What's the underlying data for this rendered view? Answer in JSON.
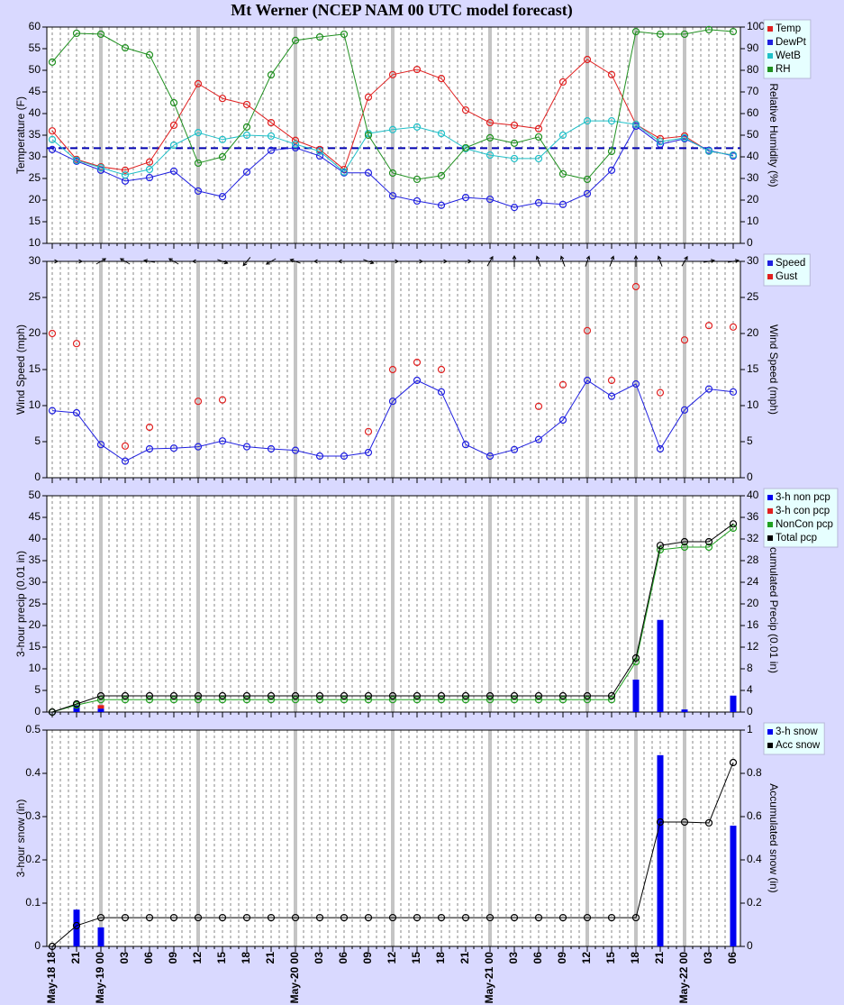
{
  "title": "Mt Werner (NCEP NAM 00 UTC model forecast)",
  "chart_data": [
    {
      "type": "line",
      "ylabel": "Temperature (F)",
      "y2label": "Relative Humidity (%)",
      "ylim": [
        10,
        60
      ],
      "yticks": [
        10,
        15,
        20,
        25,
        30,
        35,
        40,
        45,
        50,
        55,
        60
      ],
      "y2lim": [
        0,
        100
      ],
      "y2ticks": [
        0,
        10,
        20,
        30,
        40,
        50,
        60,
        70,
        80,
        90,
        100
      ],
      "ref_line": 32,
      "series": [
        {
          "name": "Temp",
          "color": "#e02020",
          "mark": "line",
          "values": [
            36.0,
            29.4,
            27.7,
            26.9,
            28.8,
            37.3,
            46.9,
            43.5,
            42.1,
            37.9,
            33.8,
            31.7,
            27.1,
            43.8,
            49.0,
            50.2,
            48.1,
            40.8,
            37.9,
            37.3,
            36.5,
            47.3,
            52.5,
            49.0,
            37.5,
            34.2,
            34.8,
            31.3,
            30.4
          ]
        },
        {
          "name": "DewPt",
          "color": "#2020e0",
          "mark": "line",
          "values": [
            31.7,
            29.0,
            26.9,
            24.4,
            25.2,
            26.7,
            22.1,
            20.8,
            26.5,
            31.5,
            32.1,
            30.2,
            26.3,
            26.3,
            21.0,
            19.8,
            18.8,
            20.6,
            20.2,
            18.3,
            19.4,
            19.0,
            21.5,
            26.9,
            37.1,
            32.9,
            34.2,
            31.5,
            30.2
          ]
        },
        {
          "name": "WetB",
          "color": "#20c0c8",
          "mark": "line",
          "values": [
            34.0,
            29.2,
            27.5,
            25.8,
            27.1,
            32.7,
            35.6,
            34.0,
            35.0,
            34.8,
            32.9,
            31.3,
            26.5,
            35.4,
            36.3,
            36.9,
            35.4,
            31.9,
            30.4,
            29.6,
            29.6,
            35.0,
            38.3,
            38.3,
            37.5,
            33.5,
            34.4,
            31.3,
            30.4
          ]
        },
        {
          "name": "RH",
          "color": "#209020",
          "mark": "line",
          "axis": "y2",
          "values": [
            83.8,
            97.1,
            96.7,
            90.4,
            87.1,
            65.0,
            37.1,
            40.0,
            53.8,
            77.9,
            93.8,
            95.4,
            96.7,
            50.0,
            32.5,
            29.6,
            31.3,
            44.2,
            48.8,
            46.3,
            49.2,
            32.1,
            29.6,
            42.5,
            97.9,
            96.7,
            96.7,
            98.8,
            97.9
          ]
        }
      ]
    },
    {
      "type": "line",
      "ylabel": "Wind Speed (mph)",
      "y2label": "Wind Speed (mph)",
      "ylim": [
        0,
        30
      ],
      "yticks": [
        0,
        5,
        10,
        15,
        20,
        25,
        30
      ],
      "y2lim": [
        0,
        30
      ],
      "y2ticks": [
        0,
        5,
        10,
        15,
        20,
        25,
        30
      ],
      "directions": [
        90,
        90,
        60,
        300,
        280,
        300,
        270,
        110,
        220,
        240,
        290,
        270,
        270,
        110,
        90,
        90,
        90,
        90,
        30,
        0,
        340,
        340,
        20,
        20,
        0,
        340,
        30,
        80,
        80
      ],
      "series": [
        {
          "name": "Speed",
          "color": "#2020e0",
          "mark": "line",
          "values": [
            9.3,
            9.0,
            4.6,
            2.3,
            4.0,
            4.1,
            4.3,
            5.1,
            4.3,
            4.0,
            3.8,
            3.0,
            3.0,
            3.5,
            10.6,
            13.5,
            11.9,
            4.6,
            3.0,
            3.9,
            5.3,
            8.0,
            13.5,
            11.3,
            13.0,
            4.0,
            9.4,
            12.3,
            11.9
          ]
        },
        {
          "name": "Gust",
          "color": "#e02020",
          "mark": "points",
          "values": [
            20.0,
            18.6,
            null,
            4.4,
            7.0,
            null,
            10.6,
            10.8,
            null,
            null,
            null,
            null,
            null,
            6.4,
            15.0,
            16.0,
            15.0,
            null,
            null,
            null,
            9.9,
            12.9,
            20.4,
            13.5,
            26.5,
            11.8,
            19.1,
            21.1,
            20.9
          ]
        }
      ]
    },
    {
      "type": "bar",
      "ylabel": "3-hour precip (0.01 in)",
      "y2label": "Accumulated Precip (0.01 in)",
      "ylim": [
        0,
        50
      ],
      "yticks": [
        0,
        5,
        10,
        15,
        20,
        25,
        30,
        35,
        40,
        45,
        50
      ],
      "y2lim": [
        0,
        40
      ],
      "y2ticks": [
        0,
        4,
        8,
        12,
        16,
        20,
        24,
        28,
        32,
        36,
        40
      ],
      "series": [
        {
          "name": "3-h non pcp",
          "color": "#0000f0",
          "mark": "bar",
          "values": [
            0,
            1.5,
            0.8,
            0,
            0,
            0,
            0,
            0,
            0,
            0,
            0,
            0,
            0,
            0,
            0,
            0,
            0,
            0,
            0,
            0,
            0,
            0,
            0,
            0,
            7.5,
            21.3,
            0.6,
            0,
            3.8
          ]
        },
        {
          "name": "3-h con pcp",
          "color": "#e02020",
          "mark": "bar",
          "values": [
            0,
            0,
            0.8,
            0,
            0,
            0,
            0,
            0,
            0,
            0,
            0,
            0,
            0,
            0,
            0,
            0,
            0,
            0,
            0,
            0,
            0,
            0,
            0,
            0,
            0,
            0,
            0,
            0,
            0
          ]
        },
        {
          "name": "NonCon pcp",
          "color": "#20a020",
          "mark": "line",
          "axis": "y2",
          "values": [
            0,
            1.3,
            2.3,
            2.3,
            2.3,
            2.3,
            2.3,
            2.3,
            2.3,
            2.3,
            2.3,
            2.3,
            2.3,
            2.3,
            2.3,
            2.3,
            2.3,
            2.3,
            2.3,
            2.3,
            2.3,
            2.3,
            2.3,
            2.3,
            9.3,
            30.0,
            30.5,
            30.5,
            34.0
          ]
        },
        {
          "name": "Total pcp",
          "color": "#000000",
          "mark": "line",
          "axis": "y2",
          "values": [
            0,
            1.5,
            3.0,
            3.0,
            3.0,
            3.0,
            3.0,
            3.0,
            3.0,
            3.0,
            3.0,
            3.0,
            3.0,
            3.0,
            3.0,
            3.0,
            3.0,
            3.0,
            3.0,
            3.0,
            3.0,
            3.0,
            3.0,
            3.0,
            10.0,
            30.8,
            31.5,
            31.5,
            34.8
          ]
        }
      ]
    },
    {
      "type": "bar",
      "ylabel": "3-hour snow (in)",
      "y2label": "Accumulated snow (in)",
      "ylim": [
        0,
        0.5
      ],
      "yticks": [
        0,
        0.1,
        0.2,
        0.3,
        0.4,
        0.5
      ],
      "y2lim": [
        0,
        1
      ],
      "y2ticks": [
        0,
        0.2,
        0.4,
        0.6,
        0.8,
        1
      ],
      "categories": [
        "May-18 18",
        "21",
        "May-19 00",
        "03",
        "06",
        "09",
        "12",
        "15",
        "18",
        "21",
        "May-20 00",
        "03",
        "06",
        "09",
        "12",
        "15",
        "18",
        "21",
        "May-21 00",
        "03",
        "06",
        "09",
        "12",
        "15",
        "18",
        "21",
        "May-22 00",
        "03",
        "06"
      ],
      "series": [
        {
          "name": "3-h snow",
          "color": "#0000f0",
          "mark": "bar",
          "values": [
            0,
            0.085,
            0.044,
            0,
            0,
            0,
            0,
            0,
            0,
            0,
            0,
            0,
            0,
            0,
            0,
            0,
            0,
            0,
            0,
            0,
            0,
            0,
            0,
            0,
            0,
            0.442,
            0,
            0,
            0.279
          ]
        },
        {
          "name": "Acc snow",
          "color": "#000000",
          "mark": "line",
          "axis": "y2",
          "values": [
            0,
            0.096,
            0.133,
            0.133,
            0.133,
            0.133,
            0.133,
            0.133,
            0.133,
            0.133,
            0.133,
            0.133,
            0.133,
            0.133,
            0.133,
            0.133,
            0.133,
            0.133,
            0.133,
            0.133,
            0.133,
            0.133,
            0.133,
            0.133,
            0.133,
            0.575,
            0.575,
            0.571,
            0.85
          ]
        }
      ]
    }
  ]
}
